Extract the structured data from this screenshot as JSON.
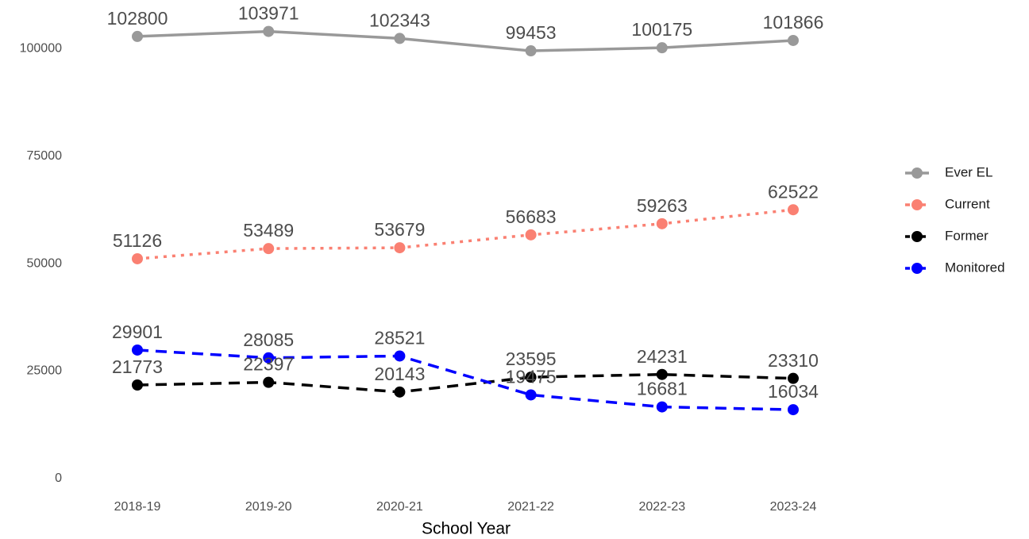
{
  "chart_data": {
    "type": "line",
    "x_label": "School Year",
    "categories": [
      "2018-19",
      "2019-20",
      "2020-21",
      "2021-22",
      "2022-23",
      "2023-24"
    ],
    "series": [
      {
        "name": "Ever EL",
        "color": "#999999",
        "dash": "solid",
        "values": [
          102800,
          103971,
          102343,
          99453,
          100175,
          101866
        ]
      },
      {
        "name": "Current",
        "color": "#fa8072",
        "dash": "dotted",
        "values": [
          51126,
          53489,
          53679,
          56683,
          59263,
          62522
        ]
      },
      {
        "name": "Former",
        "color": "#000000",
        "dash": "dashed",
        "values": [
          21773,
          22397,
          20143,
          23595,
          24231,
          23310
        ]
      },
      {
        "name": "Monitored",
        "color": "#0000ff",
        "dash": "dashed",
        "values": [
          29901,
          28085,
          28521,
          19475,
          16681,
          16034
        ]
      }
    ],
    "ylim": [
      0,
      105000
    ],
    "yticks": [
      0,
      25000,
      50000,
      75000,
      100000
    ],
    "legend": "right",
    "grid": false
  }
}
